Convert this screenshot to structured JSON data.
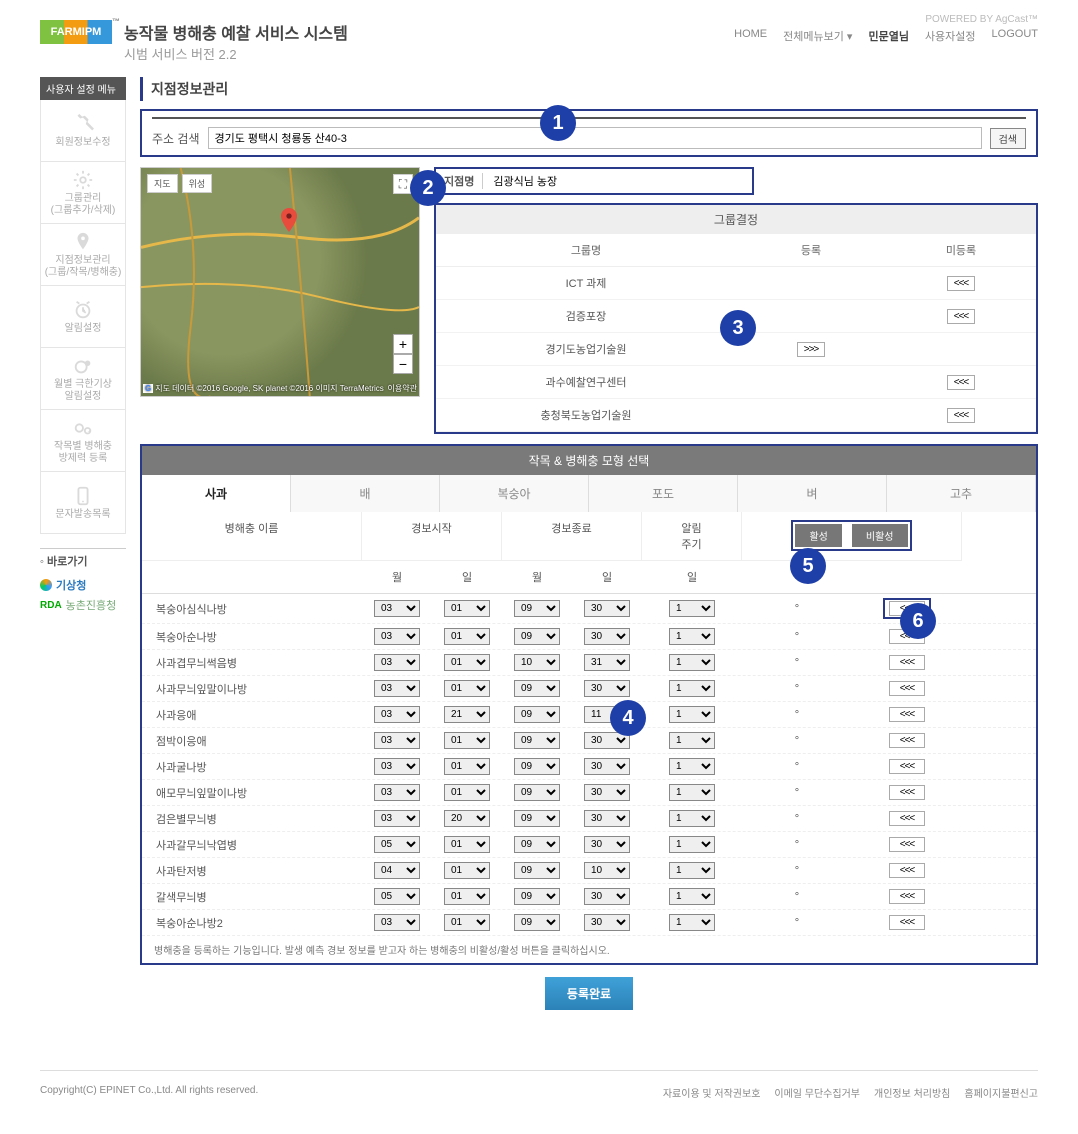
{
  "header": {
    "logo_text": "FARMIPM",
    "title_main": "농작물 병해충 예찰 서비스 시스템",
    "title_sub": "시범 서비스 버전 2.2",
    "powered": "POWERED BY AgCast™",
    "links": {
      "home": "HOME",
      "all_menu": "전체메뉴보기 ▾",
      "user": "민문열님",
      "settings": "사용자설정",
      "logout": "LOGOUT"
    }
  },
  "sidebar": {
    "header": "사용자 설정 메뉴",
    "items": [
      {
        "label": "회원정보수정"
      },
      {
        "label": "그룹관리\n(그룹추가/삭제)"
      },
      {
        "label": "지점정보관리\n(그룹/작목/병해충)"
      },
      {
        "label": "알림설정"
      },
      {
        "label": "월별 극한기상\n알림설정"
      },
      {
        "label": "작목별 병해충\n방제력 등록"
      },
      {
        "label": "문자발송목록"
      }
    ],
    "shortcut_title": "◦ 바로가기",
    "shortcuts": [
      "기상청",
      "농촌진흥청"
    ]
  },
  "page_title": "지점정보관리",
  "search": {
    "label": "주소 검색",
    "value": "경기도 평택시 청룡동 산40-3",
    "button": "검색"
  },
  "branch": {
    "label": "지점명",
    "value": "김광식님 농장"
  },
  "map": {
    "type_map": "지도",
    "type_sat": "위성",
    "google": "G",
    "credit_left": "지도 데이터 ©2016 Google, SK planet ©2016 이미지 TerraMetrics",
    "credit_right": "이용약관"
  },
  "group_panel": {
    "title": "그룹결정",
    "cols": {
      "name": "그룹명",
      "reg": "등록",
      "unreg": "미등록"
    },
    "rows": [
      {
        "name": "ICT 과제",
        "reg": "",
        "unreg": "<<<"
      },
      {
        "name": "검증포장",
        "reg": "",
        "unreg": "<<<"
      },
      {
        "name": "경기도농업기술원",
        "reg": ">>>",
        "unreg": ""
      },
      {
        "name": "과수예찰연구센터",
        "reg": "",
        "unreg": "<<<"
      },
      {
        "name": "충청북도농업기술원",
        "reg": "",
        "unreg": "<<<"
      }
    ]
  },
  "model_panel": {
    "title": "작목 & 병해충 모형 선택",
    "tabs": [
      "사과",
      "배",
      "복숭아",
      "포도",
      "벼",
      "고추"
    ],
    "active_tab": 0,
    "header": {
      "pest_name": "병해충 이름",
      "alert_start": "경보시작",
      "alert_end": "경보종료",
      "alert_cycle": "알림\n주기",
      "month": "월",
      "day": "일",
      "activate": "활성",
      "deactivate": "비활성"
    },
    "rows": [
      {
        "name": "복숭아심식나방",
        "sm": "03",
        "sd": "01",
        "em": "09",
        "ed": "30",
        "cycle": "1"
      },
      {
        "name": "복숭아순나방",
        "sm": "03",
        "sd": "01",
        "em": "09",
        "ed": "30",
        "cycle": "1"
      },
      {
        "name": "사과겹무늬썩음병",
        "sm": "03",
        "sd": "01",
        "em": "10",
        "ed": "31",
        "cycle": "1"
      },
      {
        "name": "사과무늬잎말이나방",
        "sm": "03",
        "sd": "01",
        "em": "09",
        "ed": "30",
        "cycle": "1"
      },
      {
        "name": "사과응애",
        "sm": "03",
        "sd": "21",
        "em": "09",
        "ed": "11",
        "cycle": "1"
      },
      {
        "name": "점박이응애",
        "sm": "03",
        "sd": "01",
        "em": "09",
        "ed": "30",
        "cycle": "1"
      },
      {
        "name": "사과굴나방",
        "sm": "03",
        "sd": "01",
        "em": "09",
        "ed": "30",
        "cycle": "1"
      },
      {
        "name": "애모무늬잎말이나방",
        "sm": "03",
        "sd": "01",
        "em": "09",
        "ed": "30",
        "cycle": "1"
      },
      {
        "name": "검은별무늬병",
        "sm": "03",
        "sd": "20",
        "em": "09",
        "ed": "30",
        "cycle": "1"
      },
      {
        "name": "사과갈무늬낙엽병",
        "sm": "05",
        "sd": "01",
        "em": "09",
        "ed": "30",
        "cycle": "1"
      },
      {
        "name": "사과탄저병",
        "sm": "04",
        "sd": "01",
        "em": "09",
        "ed": "10",
        "cycle": "1"
      },
      {
        "name": "갈색무늬병",
        "sm": "05",
        "sd": "01",
        "em": "09",
        "ed": "30",
        "cycle": "1"
      },
      {
        "name": "복숭아순나방2",
        "sm": "03",
        "sd": "01",
        "em": "09",
        "ed": "30",
        "cycle": "1"
      }
    ],
    "toggle_btn": "<<<",
    "note": "병해충을 등록하는 기능입니다. 발생 예측 경보 정보를 받고자 하는 병해충의 비활성/활성 버튼을 클릭하십시오."
  },
  "submit": "등록완료",
  "footer": {
    "copyright": "Copyright(C) EPINET Co.,Ltd. All rights reserved.",
    "links": [
      "자료이용 및 저작권보호",
      "이메일 무단수집거부",
      "개인정보 처리방침",
      "홈페이지불편신고"
    ]
  },
  "annotations": [
    "1",
    "2",
    "3",
    "4",
    "5",
    "6"
  ]
}
